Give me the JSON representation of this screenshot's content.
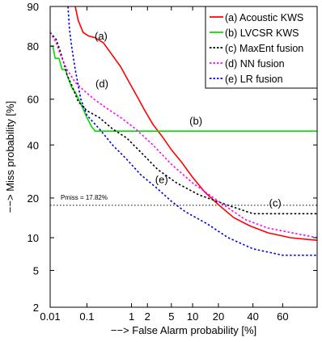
{
  "chart_data": {
    "type": "line",
    "xlabel": "−−> False Alarm probability [%]",
    "ylabel": "−−> Miss probability [%]",
    "x_scale": "probit",
    "y_scale": "probit",
    "xlim": [
      0.01,
      80
    ],
    "ylim": [
      2,
      90
    ],
    "grid": false,
    "x_ticks": [
      0.01,
      0.1,
      1,
      2,
      5,
      10,
      20,
      40,
      60
    ],
    "x_tick_labels": [
      "0.01",
      "0.1",
      "1",
      "2",
      "5",
      "10",
      "20",
      "40",
      "60"
    ],
    "y_ticks": [
      2,
      5,
      10,
      20,
      40,
      60,
      80,
      90
    ],
    "y_tick_labels": [
      "2",
      "5",
      "10",
      "20",
      "40",
      "60",
      "80",
      "90"
    ],
    "legend_position": "top-right",
    "series": [
      {
        "name": "(a) Acoustic KWS",
        "tag": "(a)",
        "color": "#ff0000",
        "dash": "solid",
        "points": [
          [
            0.05,
            90
          ],
          [
            0.06,
            87
          ],
          [
            0.08,
            84
          ],
          [
            0.11,
            83
          ],
          [
            0.16,
            82.5
          ],
          [
            0.25,
            81
          ],
          [
            0.4,
            77
          ],
          [
            0.6,
            73
          ],
          [
            0.9,
            67
          ],
          [
            1.3,
            61
          ],
          [
            1.8,
            55
          ],
          [
            2.5,
            49
          ],
          [
            3.5,
            44
          ],
          [
            5,
            38
          ],
          [
            7,
            33
          ],
          [
            10,
            27
          ],
          [
            14,
            22
          ],
          [
            20,
            18
          ],
          [
            28,
            14.5
          ],
          [
            38,
            12.5
          ],
          [
            50,
            11
          ],
          [
            65,
            10
          ],
          [
            80,
            9.5
          ]
        ]
      },
      {
        "name": "(b) LVCSR KWS",
        "tag": "(b)",
        "color": "#00dd00",
        "dash": "solid",
        "points": [
          [
            0.01,
            80
          ],
          [
            0.012,
            80
          ],
          [
            0.014,
            76
          ],
          [
            0.018,
            76
          ],
          [
            0.022,
            72
          ],
          [
            0.028,
            72
          ],
          [
            0.03,
            70
          ],
          [
            0.04,
            65
          ],
          [
            0.05,
            63
          ],
          [
            0.07,
            58
          ],
          [
            0.1,
            52
          ],
          [
            0.13,
            48
          ],
          [
            0.16,
            46
          ],
          [
            0.2,
            46
          ],
          [
            1,
            46
          ],
          [
            10,
            46
          ],
          [
            80,
            46
          ]
        ]
      },
      {
        "name": "(c) MaxEnt fusion",
        "tag": "(c)",
        "color": "#000000",
        "dash": "dotted",
        "points": [
          [
            0.01,
            84
          ],
          [
            0.015,
            82
          ],
          [
            0.02,
            78
          ],
          [
            0.025,
            74
          ],
          [
            0.03,
            70
          ],
          [
            0.04,
            66
          ],
          [
            0.06,
            59
          ],
          [
            0.1,
            55
          ],
          [
            0.2,
            52
          ],
          [
            0.4,
            47
          ],
          [
            0.8,
            43
          ],
          [
            1.5,
            37
          ],
          [
            3,
            30
          ],
          [
            6,
            25
          ],
          [
            12,
            21
          ],
          [
            25,
            17.8
          ],
          [
            40,
            15.5
          ],
          [
            50,
            15.5
          ],
          [
            80,
            15.5
          ]
        ]
      },
      {
        "name": "(d) NN fusion",
        "tag": "(d)",
        "color": "#ff00ff",
        "dash": "dotted",
        "points": [
          [
            0.01,
            84
          ],
          [
            0.015,
            81
          ],
          [
            0.02,
            77
          ],
          [
            0.03,
            72
          ],
          [
            0.05,
            67
          ],
          [
            0.08,
            64
          ],
          [
            0.15,
            60
          ],
          [
            0.3,
            56
          ],
          [
            0.6,
            52
          ],
          [
            1.2,
            47
          ],
          [
            2.5,
            40
          ],
          [
            5,
            32
          ],
          [
            10,
            25
          ],
          [
            20,
            19
          ],
          [
            35,
            14
          ],
          [
            50,
            12
          ],
          [
            80,
            10
          ]
        ]
      },
      {
        "name": "(e) LR fusion",
        "tag": "(e)",
        "color": "#0000dd",
        "dash": "dotted",
        "points": [
          [
            0.032,
            90
          ],
          [
            0.035,
            85
          ],
          [
            0.04,
            80
          ],
          [
            0.05,
            72
          ],
          [
            0.07,
            60
          ],
          [
            0.1,
            53
          ],
          [
            0.2,
            47
          ],
          [
            0.4,
            40
          ],
          [
            0.8,
            34
          ],
          [
            1.5,
            28
          ],
          [
            3,
            23
          ],
          [
            5,
            19
          ],
          [
            8,
            16
          ],
          [
            15,
            13
          ],
          [
            25,
            10
          ],
          [
            40,
            8
          ],
          [
            60,
            7
          ],
          [
            80,
            7
          ]
        ]
      }
    ],
    "annotations": [
      {
        "text": "(a)",
        "x": 0.22,
        "y": 82
      },
      {
        "text": "(d)",
        "x": 0.23,
        "y": 65
      },
      {
        "text": "(b)",
        "x": 11,
        "y": 49
      },
      {
        "text": "(e)",
        "x": 3.5,
        "y": 25
      },
      {
        "text": "(c)",
        "x": 55,
        "y": 17.5
      },
      {
        "text": "Pmiss = 17.82%",
        "x": 0.02,
        "y": 19.5
      }
    ],
    "reference_line": {
      "y": 17.82
    }
  }
}
